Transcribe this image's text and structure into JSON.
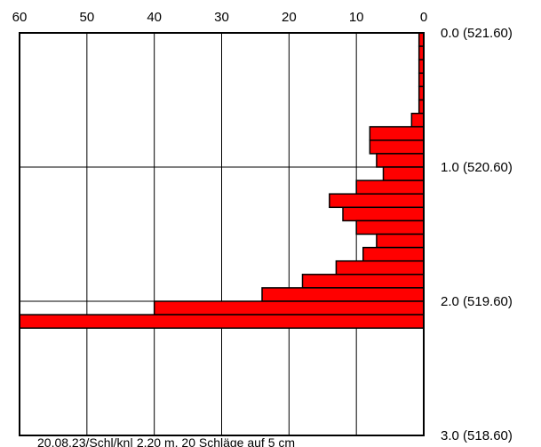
{
  "chart_data": {
    "type": "bar",
    "orientation": "horizontal",
    "title": "",
    "xlabel": "",
    "ylabel": "",
    "x_axis": {
      "position": "top",
      "reversed": true,
      "range": [
        60,
        0
      ],
      "ticks": [
        60,
        50,
        40,
        30,
        20,
        10,
        0
      ],
      "tick_labels": [
        "60",
        "50",
        "40",
        "30",
        "20",
        "10",
        "0"
      ]
    },
    "y_axis": {
      "position": "right",
      "range": [
        0.0,
        3.0
      ],
      "inverted": true,
      "ticks": [
        0.0,
        1.0,
        2.0,
        3.0
      ],
      "tick_labels": [
        "0.0 (521.60)",
        "1.0 (520.60)",
        "2.0 (519.60)",
        "3.0 (518.60)"
      ]
    },
    "grid": true,
    "bar_color": "#ff0000",
    "bar_outline": "#000000",
    "bin_width": 0.1,
    "bins": [
      {
        "depth_from": 0.0,
        "depth_to": 0.1,
        "value": 0.7
      },
      {
        "depth_from": 0.1,
        "depth_to": 0.2,
        "value": 0.7
      },
      {
        "depth_from": 0.2,
        "depth_to": 0.3,
        "value": 0.7
      },
      {
        "depth_from": 0.3,
        "depth_to": 0.4,
        "value": 0.7
      },
      {
        "depth_from": 0.4,
        "depth_to": 0.5,
        "value": 0.7
      },
      {
        "depth_from": 0.5,
        "depth_to": 0.6,
        "value": 0.7
      },
      {
        "depth_from": 0.6,
        "depth_to": 0.7,
        "value": 1.8
      },
      {
        "depth_from": 0.7,
        "depth_to": 0.8,
        "value": 8
      },
      {
        "depth_from": 0.8,
        "depth_to": 0.9,
        "value": 8
      },
      {
        "depth_from": 0.9,
        "depth_to": 1.0,
        "value": 7
      },
      {
        "depth_from": 1.0,
        "depth_to": 1.1,
        "value": 6
      },
      {
        "depth_from": 1.1,
        "depth_to": 1.2,
        "value": 10
      },
      {
        "depth_from": 1.2,
        "depth_to": 1.3,
        "value": 14
      },
      {
        "depth_from": 1.3,
        "depth_to": 1.4,
        "value": 12
      },
      {
        "depth_from": 1.4,
        "depth_to": 1.5,
        "value": 10
      },
      {
        "depth_from": 1.5,
        "depth_to": 1.6,
        "value": 7
      },
      {
        "depth_from": 1.6,
        "depth_to": 1.7,
        "value": 9
      },
      {
        "depth_from": 1.7,
        "depth_to": 1.8,
        "value": 13
      },
      {
        "depth_from": 1.8,
        "depth_to": 1.9,
        "value": 18
      },
      {
        "depth_from": 1.9,
        "depth_to": 2.0,
        "value": 24
      },
      {
        "depth_from": 2.0,
        "depth_to": 2.1,
        "value": 40
      },
      {
        "depth_from": 2.1,
        "depth_to": 2.2,
        "value": 60
      }
    ],
    "caption": "20.08.23/Schl/kn| 2.20 m, 20 Schläge auf 5 cm"
  }
}
